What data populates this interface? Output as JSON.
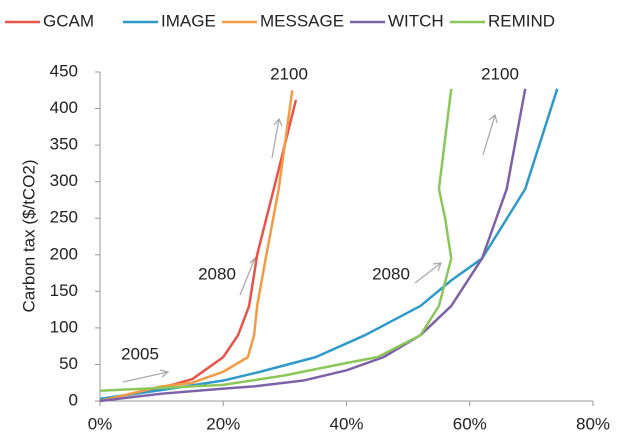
{
  "chart_data": {
    "type": "line",
    "y_label": "Carbon tax ($/tCO2)",
    "annotations": [
      "2005",
      "2080",
      "2080",
      "2100",
      "2100"
    ],
    "xlim": [
      0,
      80
    ],
    "xticks": [
      {
        "value": 0,
        "label": "0%"
      },
      {
        "value": 20,
        "label": "20%"
      },
      {
        "value": 40,
        "label": "40%"
      },
      {
        "value": 60,
        "label": "60%"
      },
      {
        "value": 80,
        "label": "80%"
      }
    ],
    "ylim": [
      0,
      450
    ],
    "yticks": [
      0,
      50,
      100,
      150,
      200,
      250,
      300,
      350,
      400,
      450
    ],
    "grid": false,
    "legend": "top",
    "series": [
      {
        "name": "GCAM",
        "color": "#e8534a",
        "x": [
          0,
          5,
          10,
          15,
          20,
          22.4,
          24.2,
          25.5,
          27,
          28.5,
          31.8
        ],
        "values": [
          0,
          10,
          18,
          30,
          60,
          90,
          130,
          200,
          250,
          300,
          412
        ]
      },
      {
        "name": "IMAGE",
        "color": "#2e9ac9",
        "x": [
          0,
          10,
          20,
          26,
          35,
          43,
          52,
          57,
          62,
          69,
          74.2
        ],
        "values": [
          3,
          15,
          28,
          40,
          60,
          90,
          130,
          165,
          195,
          290,
          427
        ]
      },
      {
        "name": "MESSAGE",
        "color": "#f39a45",
        "x": [
          0,
          10,
          15,
          20,
          24,
          25,
          25.5,
          27,
          29,
          31.2
        ],
        "values": [
          0,
          20,
          25,
          40,
          60,
          90,
          130,
          200,
          290,
          425
        ]
      },
      {
        "name": "WITCH",
        "color": "#7e62a8",
        "x": [
          0,
          10,
          20,
          25,
          33,
          40,
          46,
          52,
          57,
          62,
          66,
          69
        ],
        "values": [
          0,
          10,
          17,
          20,
          28,
          42,
          60,
          90,
          130,
          195,
          290,
          427
        ]
      },
      {
        "name": "REMIND",
        "color": "#8cc75a",
        "x": [
          0,
          10,
          20,
          30,
          40,
          45,
          52,
          55,
          57,
          56,
          55,
          57
        ],
        "values": [
          14,
          18,
          22,
          35,
          52,
          60,
          90,
          130,
          195,
          250,
          290,
          427
        ]
      }
    ]
  }
}
